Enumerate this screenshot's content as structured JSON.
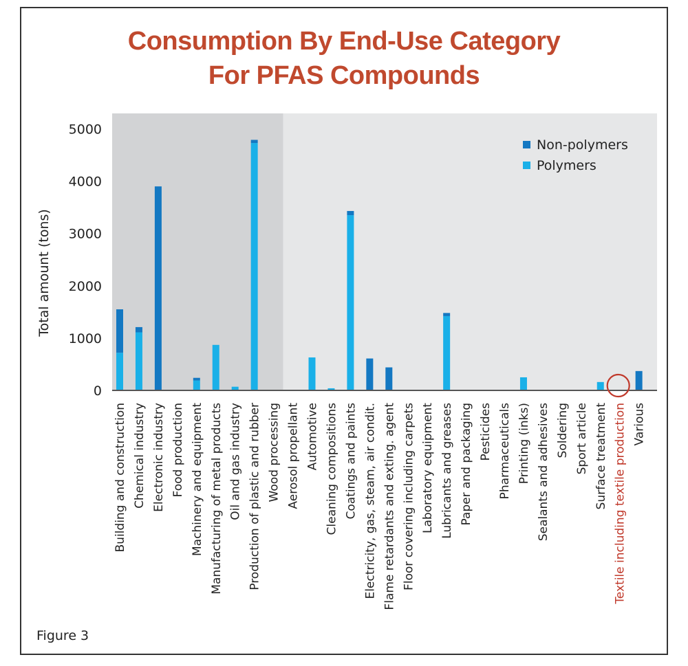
{
  "figure_label": "Figure 3",
  "chart_data": {
    "type": "bar",
    "stacked": true,
    "title": "Consumption By End-Use Category\nFor PFAS Compounds",
    "title_lines": [
      "Consumption By End-Use Category",
      "For PFAS Compounds"
    ],
    "ylabel": "Total amount (tons)",
    "xlabel": "",
    "ylim": [
      0,
      5000
    ],
    "yticks": [
      0,
      1000,
      2000,
      3000,
      4000,
      5000
    ],
    "grid": false,
    "legend_position": "top-right",
    "shaded_group_last_index": 8,
    "categories": [
      "Building and construction",
      "Chemical industry",
      "Electronic industry",
      "Food production",
      "Machinery and equipment",
      "Manufacturing of metal products",
      "Oil and gas industry",
      "Production of plastic and rubber",
      "Wood processing",
      "Aerosol propellant",
      "Automotive",
      "Cleaning compositions",
      "Coatings and paints",
      "Electricity, gas, steam, air condit.",
      "Flame retardants and exting. agent",
      "Floor covering including carpets",
      "Laboratory equipment",
      "Lubricants and greases",
      "Paper and packaging",
      "Pesticides",
      "Pharmaceuticals",
      "Printing (inks)",
      "Sealants and adhesives",
      "Soldering",
      "Sport article",
      "Surface treatment",
      "Textile including textile production",
      "Various"
    ],
    "highlighted_category": "Textile including textile production",
    "series": [
      {
        "name": "Polymers",
        "values": [
          720,
          1110,
          0,
          0,
          190,
          870,
          70,
          4730,
          0,
          0,
          630,
          40,
          3350,
          0,
          0,
          0,
          0,
          1420,
          0,
          0,
          0,
          250,
          0,
          0,
          0,
          160,
          0,
          0
        ]
      },
      {
        "name": "Non-polymers",
        "values": [
          830,
          100,
          3900,
          0,
          50,
          0,
          0,
          60,
          0,
          0,
          0,
          0,
          80,
          610,
          440,
          0,
          0,
          60,
          0,
          0,
          0,
          0,
          0,
          0,
          0,
          0,
          0,
          370
        ]
      }
    ],
    "colors": {
      "Polymers": "#1ab0e8",
      "Non-polymers": "#1478c2",
      "title": "#c0492e",
      "highlight": "#c0392b",
      "bg_dark": "#d2d3d5",
      "bg_light": "#e6e7e8",
      "axis": "#555555"
    }
  }
}
